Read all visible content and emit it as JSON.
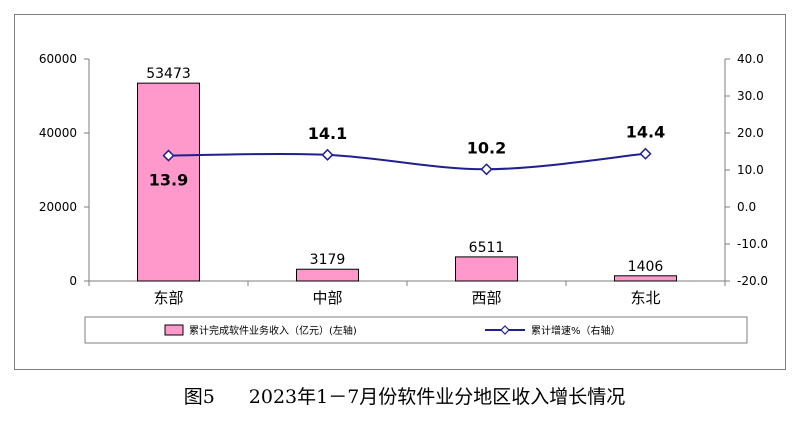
{
  "caption": {
    "figure_number": "图5",
    "title": "2023年1－7月份软件业分地区收入增长情况"
  },
  "chart_data": {
    "type": "bar",
    "categories": [
      "东部",
      "中部",
      "西部",
      "东北"
    ],
    "series": [
      {
        "name": "累计完成软件业务收入（亿元）(左轴)",
        "type": "bar",
        "axis": "left",
        "values": [
          53473,
          3179,
          6511,
          1406
        ],
        "color": "#ff99cc"
      },
      {
        "name": "累计增速%（右轴）",
        "type": "line",
        "axis": "right",
        "values": [
          13.9,
          14.1,
          10.2,
          14.4
        ],
        "color": "#1f1f8f"
      }
    ],
    "y_left": {
      "range": [
        0,
        60000
      ],
      "ticks": [
        "0",
        "20000",
        "40000",
        "60000"
      ]
    },
    "y_right": {
      "range": [
        -20,
        40
      ],
      "ticks": [
        "-20.0",
        "-10.0",
        "0.0",
        "10.0",
        "20.0",
        "30.0",
        "40.0"
      ]
    },
    "bar_labels": [
      "53473",
      "3179",
      "6511",
      "1406"
    ],
    "line_labels": [
      "13.9",
      "14.1",
      "10.2",
      "14.4"
    ],
    "legend_position": "bottom",
    "grid": false
  }
}
